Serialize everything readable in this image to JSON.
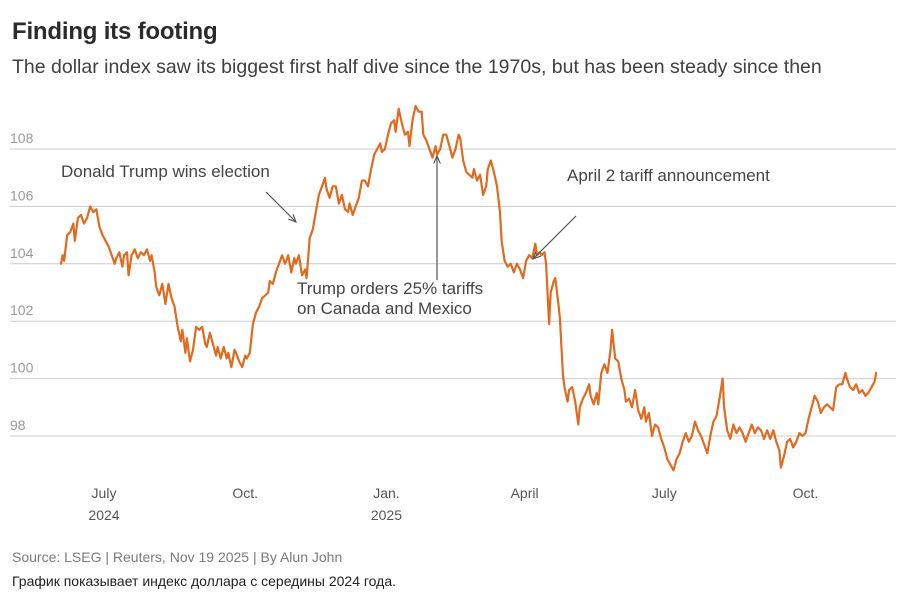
{
  "title": "Finding its footing",
  "subtitle": "The dollar index saw its biggest first half dive since the 1970s, but has been steady since then",
  "source": "Source: LSEG | Reuters, Nov 19 2025 | By Alun John",
  "note": "График показывает индекс доллара с середины 2024 года.",
  "colors": {
    "line": "#e06a1f",
    "grid": "#cccccc",
    "tick": "#9a9a9a",
    "axis_text": "#555555",
    "annotation": "#444444",
    "arrow": "#555555"
  },
  "chart_data": {
    "type": "line",
    "title": "Finding its footing",
    "xlabel": "",
    "ylabel": "",
    "ylim": [
      96.2,
      110.3
    ],
    "yticks": [
      98,
      100,
      102,
      104,
      106,
      108
    ],
    "ytick_labels": [
      "98",
      "100",
      "102",
      "104",
      "106",
      "108"
    ],
    "grid": true,
    "x_unit": "days since 2024-07-01",
    "xlim": [
      -28,
      506
    ],
    "xticks": [
      {
        "day": 0,
        "label": "July",
        "sublabel": "2024"
      },
      {
        "day": 92,
        "label": "Oct.",
        "sublabel": ""
      },
      {
        "day": 184,
        "label": "Jan.",
        "sublabel": "2025"
      },
      {
        "day": 274,
        "label": "April",
        "sublabel": ""
      },
      {
        "day": 365,
        "label": "July",
        "sublabel": ""
      },
      {
        "day": 457,
        "label": "Oct.",
        "sublabel": ""
      }
    ],
    "series": [
      {
        "name": "Dollar index",
        "points": [
          [
            -28,
            104.0
          ],
          [
            -27,
            104.3
          ],
          [
            -26,
            104.1
          ],
          [
            -24,
            105.0
          ],
          [
            -22,
            105.1
          ],
          [
            -20,
            105.4
          ],
          [
            -19,
            104.8
          ],
          [
            -17,
            105.6
          ],
          [
            -15,
            105.7
          ],
          [
            -13,
            105.4
          ],
          [
            -11,
            105.6
          ],
          [
            -9,
            106.0
          ],
          [
            -7,
            105.8
          ],
          [
            -5,
            105.9
          ],
          [
            -3,
            105.3
          ],
          [
            -1,
            105.0
          ],
          [
            1,
            104.8
          ],
          [
            3,
            104.6
          ],
          [
            5,
            104.3
          ],
          [
            7,
            104.0
          ],
          [
            8,
            104.2
          ],
          [
            10,
            104.4
          ],
          [
            12,
            103.9
          ],
          [
            13,
            104.3
          ],
          [
            15,
            104.4
          ],
          [
            16,
            103.6
          ],
          [
            18,
            104.3
          ],
          [
            20,
            104.5
          ],
          [
            22,
            104.2
          ],
          [
            24,
            104.4
          ],
          [
            26,
            104.3
          ],
          [
            28,
            104.5
          ],
          [
            30,
            104.1
          ],
          [
            31,
            104.3
          ],
          [
            33,
            103.7
          ],
          [
            34,
            103.2
          ],
          [
            36,
            102.9
          ],
          [
            38,
            103.3
          ],
          [
            40,
            102.6
          ],
          [
            42,
            103.3
          ],
          [
            44,
            102.8
          ],
          [
            46,
            102.5
          ],
          [
            48,
            101.8
          ],
          [
            50,
            101.3
          ],
          [
            51,
            101.7
          ],
          [
            53,
            100.9
          ],
          [
            54,
            101.4
          ],
          [
            56,
            100.6
          ],
          [
            58,
            101.0
          ],
          [
            60,
            101.8
          ],
          [
            62,
            101.7
          ],
          [
            64,
            101.8
          ],
          [
            66,
            101.2
          ],
          [
            67,
            101.1
          ],
          [
            69,
            101.6
          ],
          [
            71,
            101.2
          ],
          [
            73,
            100.8
          ],
          [
            74,
            101.1
          ],
          [
            76,
            100.7
          ],
          [
            78,
            101.1
          ],
          [
            80,
            100.7
          ],
          [
            81,
            100.9
          ],
          [
            83,
            100.4
          ],
          [
            85,
            101.0
          ],
          [
            86,
            100.9
          ],
          [
            88,
            100.6
          ],
          [
            90,
            100.4
          ],
          [
            92,
            100.8
          ],
          [
            93,
            100.7
          ],
          [
            95,
            100.9
          ],
          [
            97,
            101.9
          ],
          [
            99,
            102.3
          ],
          [
            101,
            102.5
          ],
          [
            103,
            102.8
          ],
          [
            105,
            102.9
          ],
          [
            107,
            103.0
          ],
          [
            108,
            103.4
          ],
          [
            110,
            103.3
          ],
          [
            112,
            103.7
          ],
          [
            114,
            104.0
          ],
          [
            116,
            104.3
          ],
          [
            118,
            104.0
          ],
          [
            120,
            104.3
          ],
          [
            122,
            103.7
          ],
          [
            124,
            104.2
          ],
          [
            125,
            104.0
          ],
          [
            127,
            104.3
          ],
          [
            129,
            103.6
          ],
          [
            131,
            103.8
          ],
          [
            132,
            103.5
          ],
          [
            134,
            104.9
          ],
          [
            136,
            105.2
          ],
          [
            138,
            105.8
          ],
          [
            140,
            106.4
          ],
          [
            142,
            106.7
          ],
          [
            144,
            107.0
          ],
          [
            145,
            106.6
          ],
          [
            147,
            106.3
          ],
          [
            149,
            106.7
          ],
          [
            151,
            106.7
          ],
          [
            153,
            106.1
          ],
          [
            155,
            106.4
          ],
          [
            157,
            105.9
          ],
          [
            159,
            105.8
          ],
          [
            160,
            106.1
          ],
          [
            162,
            105.7
          ],
          [
            164,
            106.0
          ],
          [
            166,
            106.3
          ],
          [
            168,
            106.9
          ],
          [
            170,
            106.9
          ],
          [
            172,
            106.7
          ],
          [
            174,
            107.3
          ],
          [
            176,
            107.8
          ],
          [
            178,
            108.0
          ],
          [
            180,
            108.2
          ],
          [
            181,
            107.9
          ],
          [
            183,
            108.0
          ],
          [
            185,
            108.5
          ],
          [
            187,
            108.9
          ],
          [
            189,
            109.0
          ],
          [
            190,
            108.6
          ],
          [
            192,
            109.4
          ],
          [
            194,
            108.9
          ],
          [
            196,
            108.5
          ],
          [
            198,
            108.6
          ],
          [
            199,
            108.1
          ],
          [
            201,
            109.0
          ],
          [
            203,
            109.5
          ],
          [
            205,
            109.3
          ],
          [
            207,
            109.3
          ],
          [
            208,
            108.5
          ],
          [
            210,
            108.3
          ],
          [
            212,
            108.0
          ],
          [
            214,
            107.7
          ],
          [
            216,
            108.1
          ],
          [
            217,
            107.8
          ],
          [
            219,
            108.0
          ],
          [
            221,
            108.5
          ],
          [
            223,
            108.5
          ],
          [
            225,
            108.1
          ],
          [
            227,
            107.7
          ],
          [
            229,
            108.0
          ],
          [
            231,
            108.5
          ],
          [
            232,
            108.4
          ],
          [
            234,
            107.6
          ],
          [
            236,
            107.2
          ],
          [
            238,
            107.1
          ],
          [
            240,
            107.0
          ],
          [
            241,
            107.3
          ],
          [
            243,
            106.9
          ],
          [
            245,
            107.1
          ],
          [
            247,
            106.4
          ],
          [
            249,
            106.7
          ],
          [
            250,
            107.3
          ],
          [
            252,
            107.6
          ],
          [
            254,
            107.2
          ],
          [
            256,
            106.7
          ],
          [
            258,
            105.8
          ],
          [
            259,
            104.8
          ],
          [
            261,
            104.1
          ],
          [
            263,
            103.9
          ],
          [
            265,
            104.0
          ],
          [
            267,
            103.7
          ],
          [
            269,
            104.0
          ],
          [
            271,
            103.8
          ],
          [
            273,
            103.5
          ],
          [
            275,
            104.1
          ],
          [
            277,
            104.3
          ],
          [
            279,
            104.2
          ],
          [
            281,
            104.7
          ],
          [
            282,
            104.3
          ],
          [
            284,
            104.4
          ],
          [
            285,
            104.3
          ],
          [
            287,
            104.4
          ],
          [
            288,
            104.0
          ],
          [
            290,
            101.9
          ],
          [
            291,
            103.0
          ],
          [
            293,
            103.4
          ],
          [
            294,
            103.5
          ],
          [
            296,
            102.6
          ],
          [
            297,
            102.1
          ],
          [
            299,
            100.1
          ],
          [
            300,
            99.7
          ],
          [
            302,
            99.2
          ],
          [
            303,
            99.6
          ],
          [
            305,
            99.7
          ],
          [
            307,
            99.2
          ],
          [
            309,
            98.4
          ],
          [
            310,
            99.0
          ],
          [
            312,
            99.3
          ],
          [
            314,
            99.5
          ],
          [
            316,
            99.8
          ],
          [
            317,
            99.4
          ],
          [
            319,
            99.1
          ],
          [
            321,
            99.5
          ],
          [
            322,
            99.1
          ],
          [
            324,
            100.2
          ],
          [
            326,
            100.5
          ],
          [
            328,
            100.2
          ],
          [
            330,
            101.0
          ],
          [
            331,
            101.7
          ],
          [
            333,
            100.7
          ],
          [
            335,
            100.6
          ],
          [
            337,
            100.0
          ],
          [
            339,
            99.6
          ],
          [
            340,
            99.2
          ],
          [
            342,
            99.3
          ],
          [
            344,
            99.0
          ],
          [
            346,
            99.6
          ],
          [
            348,
            98.9
          ],
          [
            350,
            98.6
          ],
          [
            352,
            99.0
          ],
          [
            353,
            98.5
          ],
          [
            355,
            98.8
          ],
          [
            357,
            98.0
          ],
          [
            359,
            98.4
          ],
          [
            361,
            98.3
          ],
          [
            363,
            97.9
          ],
          [
            365,
            97.6
          ],
          [
            367,
            97.2
          ],
          [
            369,
            97.0
          ],
          [
            371,
            96.8
          ],
          [
            373,
            97.2
          ],
          [
            375,
            97.4
          ],
          [
            377,
            97.8
          ],
          [
            379,
            98.1
          ],
          [
            381,
            97.8
          ],
          [
            383,
            98.0
          ],
          [
            385,
            98.5
          ],
          [
            387,
            98.2
          ],
          [
            389,
            98.0
          ],
          [
            391,
            97.7
          ],
          [
            393,
            97.4
          ],
          [
            395,
            98.0
          ],
          [
            397,
            98.5
          ],
          [
            399,
            98.7
          ],
          [
            401,
            99.3
          ],
          [
            403,
            100.0
          ],
          [
            404,
            99.0
          ],
          [
            406,
            98.2
          ],
          [
            408,
            97.9
          ],
          [
            410,
            98.4
          ],
          [
            412,
            98.1
          ],
          [
            414,
            98.3
          ],
          [
            416,
            98.1
          ],
          [
            418,
            97.8
          ],
          [
            420,
            98.1
          ],
          [
            422,
            98.4
          ],
          [
            424,
            98.1
          ],
          [
            426,
            98.3
          ],
          [
            428,
            98.2
          ],
          [
            430,
            97.9
          ],
          [
            432,
            98.2
          ],
          [
            434,
            97.9
          ],
          [
            436,
            98.2
          ],
          [
            438,
            97.8
          ],
          [
            440,
            97.5
          ],
          [
            441,
            96.9
          ],
          [
            443,
            97.3
          ],
          [
            445,
            97.8
          ],
          [
            447,
            97.9
          ],
          [
            449,
            97.6
          ],
          [
            451,
            97.8
          ],
          [
            453,
            98.1
          ],
          [
            455,
            98.0
          ],
          [
            457,
            98.1
          ],
          [
            459,
            98.6
          ],
          [
            461,
            99.0
          ],
          [
            463,
            99.4
          ],
          [
            465,
            99.2
          ],
          [
            467,
            98.8
          ],
          [
            469,
            99.0
          ],
          [
            471,
            99.1
          ],
          [
            473,
            99.0
          ],
          [
            475,
            98.9
          ],
          [
            477,
            99.7
          ],
          [
            479,
            99.8
          ],
          [
            481,
            99.8
          ],
          [
            483,
            100.2
          ],
          [
            484,
            100.0
          ],
          [
            486,
            99.7
          ],
          [
            488,
            99.6
          ],
          [
            490,
            99.8
          ],
          [
            492,
            99.5
          ],
          [
            494,
            99.6
          ],
          [
            496,
            99.4
          ],
          [
            498,
            99.5
          ],
          [
            500,
            99.7
          ],
          [
            502,
            99.9
          ],
          [
            503,
            100.2
          ]
        ]
      }
    ],
    "annotations": [
      {
        "id": "election",
        "lines": [
          "Donald Trump wins election"
        ],
        "target_day": 128,
        "target_value": 105.2
      },
      {
        "id": "tariffs-canada-mexico",
        "lines": [
          "Trump orders 25% tariffs",
          "on Canada and Mexico"
        ],
        "target_day": 216,
        "target_value": 107.7
      },
      {
        "id": "april-2",
        "lines": [
          "April 2 tariff announcement"
        ],
        "target_day": 275,
        "target_value": 104.2
      }
    ]
  }
}
